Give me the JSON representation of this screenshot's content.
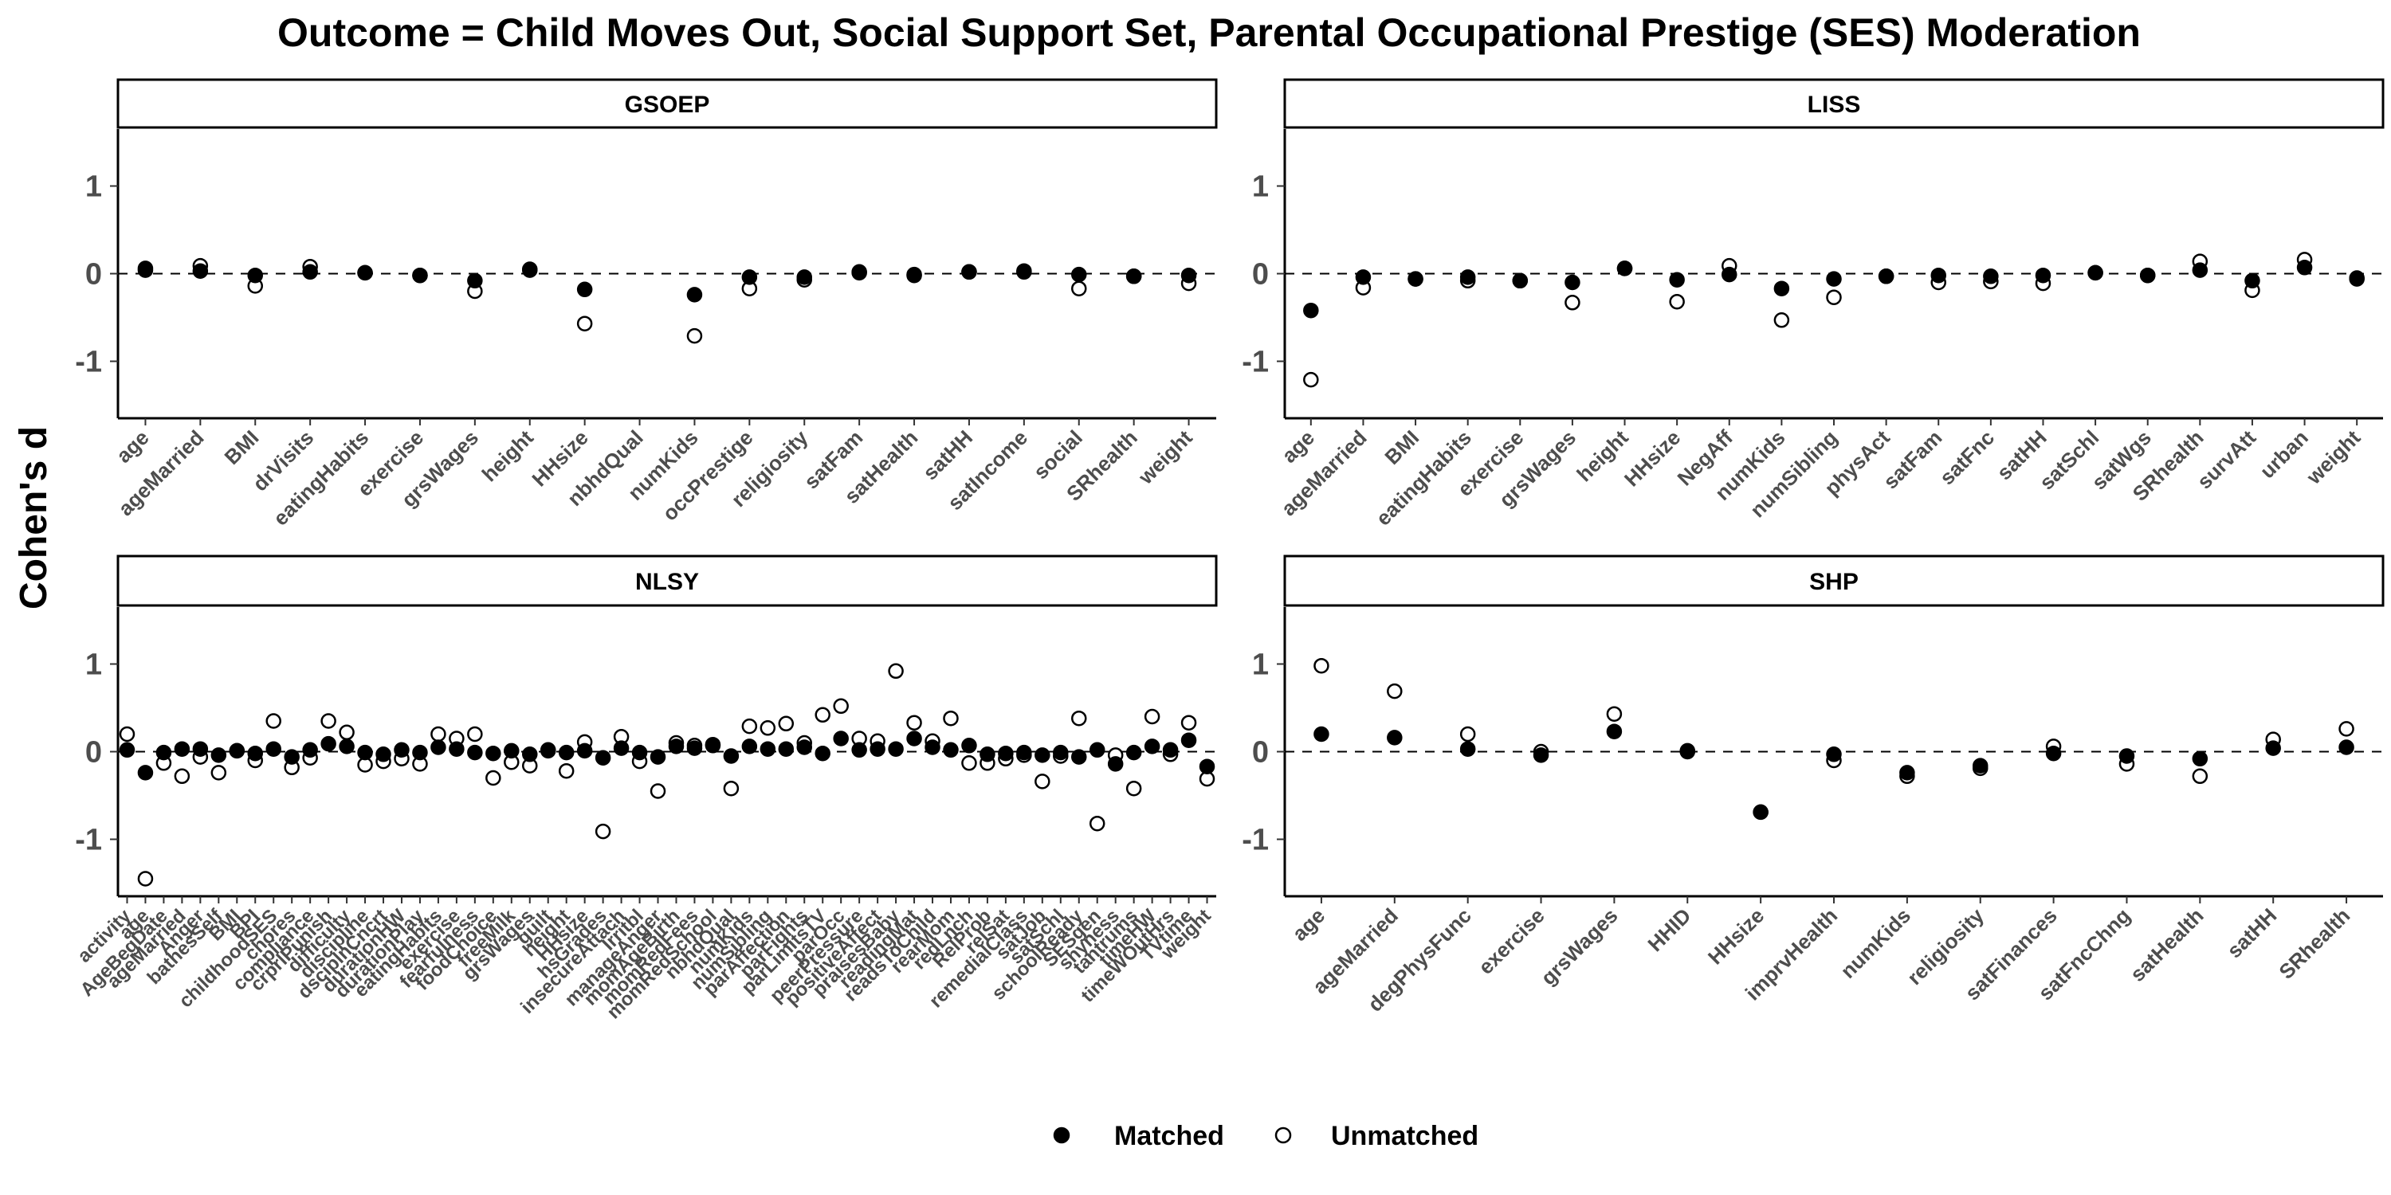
{
  "chart_data": {
    "type": "scatter",
    "title": "Outcome = Child Moves Out, Social Support Set, Parental Occupational Prestige (SES) Moderation",
    "ylabel": "Cohen's d",
    "ylim": [
      -1.65,
      1.65
    ],
    "yticks": [
      -1,
      0,
      1
    ],
    "reference_line": 0,
    "legend": {
      "position": "bottom",
      "items": [
        {
          "name": "Matched",
          "marker": "filled-circle"
        },
        {
          "name": "Unmatched",
          "marker": "open-circle"
        }
      ]
    },
    "panels": [
      {
        "name": "GSOEP",
        "categories": [
          "age",
          "ageMarried",
          "BMI",
          "drVisits",
          "eatingHabits",
          "exercise",
          "grsWages",
          "height",
          "HHsize",
          "nbhdQual",
          "numKids",
          "occPrestige",
          "religiosity",
          "satFam",
          "satHealth",
          "satHH",
          "satIncome",
          "social",
          "SRhealth",
          "weight"
        ],
        "series": [
          {
            "name": "Matched",
            "values": [
              0.06,
              0.03,
              -0.02,
              0.02,
              0.01,
              -0.02,
              -0.08,
              0.05,
              -0.18,
              null,
              -0.24,
              -0.04,
              -0.04,
              0.02,
              -0.01,
              0.02,
              0.02,
              -0.01,
              -0.03,
              -0.02
            ]
          },
          {
            "name": "Unmatched",
            "values": [
              0.04,
              0.09,
              -0.14,
              0.08,
              0.01,
              -0.02,
              -0.2,
              0.04,
              -0.57,
              null,
              -0.71,
              -0.17,
              -0.07,
              0.01,
              -0.02,
              0.02,
              0.03,
              -0.17,
              -0.03,
              -0.11
            ]
          }
        ]
      },
      {
        "name": "LISS",
        "categories": [
          "age",
          "ageMarried",
          "BMI",
          "eatingHabits",
          "exercise",
          "grsWages",
          "height",
          "HHsize",
          "NegAff",
          "numKids",
          "numSibling",
          "physAct",
          "satFam",
          "satFnc",
          "satHH",
          "satSchl",
          "satWgs",
          "SRhealth",
          "survAtt",
          "urban",
          "weight"
        ],
        "series": [
          {
            "name": "Matched",
            "values": [
              -0.42,
              -0.04,
              -0.06,
              -0.04,
              -0.08,
              -0.1,
              0.06,
              -0.07,
              -0.01,
              -0.17,
              -0.06,
              -0.03,
              -0.02,
              -0.03,
              -0.02,
              0.01,
              -0.02,
              0.04,
              -0.08,
              0.07,
              -0.05
            ]
          },
          {
            "name": "Unmatched",
            "values": [
              -1.21,
              -0.16,
              -0.06,
              -0.08,
              -0.08,
              -0.33,
              0.06,
              -0.32,
              0.09,
              -0.53,
              -0.27,
              -0.03,
              -0.1,
              -0.09,
              -0.11,
              0.01,
              -0.02,
              0.14,
              -0.19,
              0.16,
              -0.06
            ]
          }
        ]
      },
      {
        "name": "NLSY",
        "categories": [
          "activity",
          "age",
          "AgeBegDate",
          "ageMarried",
          "Anger",
          "bathesSelf",
          "BMI",
          "BPI",
          "childhoodSES",
          "chores",
          "compliance",
          "crprlPunish",
          "difficulty",
          "discipline",
          "dsciplnCncrt",
          "durationHW",
          "durationPlay",
          "eatingHabits",
          "exercise",
          "fearfulness",
          "foodChoice",
          "freeMilk",
          "grsWages",
          "guilt",
          "height",
          "HHsize",
          "hsGrades",
          "insecureAttach",
          "Irritbl",
          "manageAnger",
          "momAgeBirth",
          "momRedFees",
          "momRedSchool",
          "nbhdQual",
          "numKids",
          "numSibling",
          "parAffection",
          "parFights",
          "parLimitsTV",
          "parOcc",
          "peerPressure",
          "positiveAffect",
          "praisesBaby",
          "readingMat",
          "readsToChild",
          "rearMom",
          "redLnch",
          "RelProb",
          "relSat",
          "remedialClass",
          "satJob",
          "satSchl",
          "schoolReady",
          "SESgen",
          "shyness",
          "tantrums",
          "timeHW",
          "timeWOutHrs",
          "TVtime",
          "weight"
        ],
        "series": [
          {
            "name": "Matched",
            "values": [
              0.02,
              -0.24,
              -0.01,
              0.03,
              0.03,
              -0.04,
              0.01,
              -0.02,
              0.03,
              -0.06,
              0.02,
              0.09,
              0.06,
              -0.01,
              -0.03,
              0.02,
              -0.01,
              0.05,
              0.03,
              -0.01,
              -0.02,
              0.01,
              -0.03,
              0.01,
              -0.01,
              0.01,
              -0.07,
              0.04,
              -0.01,
              -0.06,
              0.06,
              0.04,
              0.07,
              -0.05,
              0.06,
              0.03,
              0.03,
              0.05,
              -0.02,
              0.15,
              0.02,
              0.03,
              0.03,
              0.15,
              0.05,
              0.02,
              0.07,
              -0.03,
              -0.02,
              -0.01,
              -0.04,
              -0.01,
              -0.06,
              0.02,
              -0.14,
              -0.01,
              0.06,
              0.02,
              0.13,
              -0.17
            ]
          },
          {
            "name": "Unmatched",
            "values": [
              0.2,
              -1.45,
              -0.13,
              -0.28,
              -0.06,
              -0.24,
              0.01,
              -0.1,
              0.35,
              -0.18,
              -0.07,
              0.35,
              0.22,
              -0.15,
              -0.11,
              -0.08,
              -0.14,
              0.2,
              0.15,
              0.2,
              -0.3,
              -0.12,
              -0.16,
              0.02,
              -0.22,
              0.11,
              -0.91,
              0.17,
              -0.11,
              -0.45,
              0.1,
              0.07,
              0.08,
              -0.42,
              0.29,
              0.27,
              0.32,
              0.1,
              0.42,
              0.52,
              0.15,
              0.12,
              0.92,
              0.33,
              0.12,
              0.38,
              -0.13,
              -0.13,
              -0.08,
              -0.04,
              -0.34,
              -0.05,
              0.38,
              -0.82,
              -0.04,
              -0.42,
              0.4,
              -0.03,
              0.33,
              -0.31
            ]
          }
        ]
      },
      {
        "name": "SHP",
        "categories": [
          "age",
          "ageMarried",
          "degPhysFunc",
          "exercise",
          "grsWages",
          "HHID",
          "HHsize",
          "imprvHealth",
          "numKids",
          "religiosity",
          "satFinances",
          "satFncChng",
          "satHealth",
          "satHH",
          "SRhealth"
        ],
        "series": [
          {
            "name": "Matched",
            "values": [
              0.2,
              0.16,
              0.03,
              -0.04,
              0.23,
              0.0,
              -0.69,
              -0.03,
              -0.24,
              -0.16,
              -0.02,
              -0.05,
              -0.08,
              0.04,
              0.05
            ]
          },
          {
            "name": "Unmatched",
            "values": [
              0.98,
              0.69,
              0.2,
              0.0,
              0.43,
              0.01,
              -0.69,
              -0.1,
              -0.28,
              -0.19,
              0.06,
              -0.14,
              -0.28,
              0.14,
              0.26
            ]
          }
        ]
      }
    ]
  }
}
